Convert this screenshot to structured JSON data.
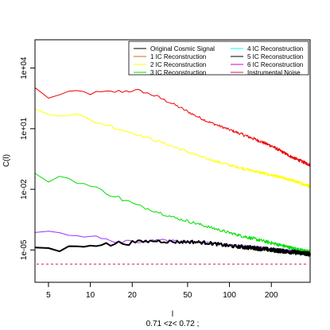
{
  "chart_data": {
    "type": "line",
    "title": "",
    "xlabel": "l",
    "subtitle": "0.71 <z< 0.72 ;",
    "ylabel": "C(l)",
    "x_scale": "log",
    "y_scale": "log",
    "xlim": [
      4,
      380
    ],
    "ylim_log10": [
      -6.6,
      5.4
    ],
    "x_ticks": [
      {
        "value": 5,
        "label": "5"
      },
      {
        "value": 10,
        "label": "10"
      },
      {
        "value": 20,
        "label": "20"
      },
      {
        "value": 50,
        "label": "50"
      },
      {
        "value": 100,
        "label": "100"
      },
      {
        "value": 200,
        "label": "200"
      }
    ],
    "y_ticks": [
      {
        "log10": -5,
        "label": "1e-05"
      },
      {
        "log10": -2,
        "label": "1e-02"
      },
      {
        "log10": 1,
        "label": "1e+01"
      },
      {
        "log10": 4,
        "label": "1e+04"
      }
    ],
    "legend": {
      "placement": "top-right",
      "columns": 2,
      "entries": [
        {
          "name": "Original Cosmic Signal",
          "color": "#000000"
        },
        {
          "name": "1 IC Reconstruction",
          "color": "#d2691e"
        },
        {
          "name": "2 IC Reconstruction",
          "color": "#ffff00"
        },
        {
          "name": "3 IC Reconstruction",
          "color": "#00dd00"
        },
        {
          "name": "4 IC Reconstruction",
          "color": "#00ffff"
        },
        {
          "name": "5 IC Reconstruction",
          "color": "#000000"
        },
        {
          "name": "6 IC Reconstruction",
          "color": "#cc00cc"
        },
        {
          "name": "Instrumental Noise",
          "color": "#d4145a"
        }
      ]
    },
    "series": [
      {
        "name": "1 IC Reconstruction",
        "color": "#ee0000",
        "width": 1,
        "noise": 0.07,
        "x": [
          4,
          5,
          6,
          8,
          10,
          13,
          17,
          22,
          30,
          40,
          55,
          70,
          100,
          150,
          200,
          280,
          380
        ],
        "log10_y": [
          3.0,
          2.55,
          2.65,
          2.85,
          2.75,
          2.8,
          2.85,
          2.9,
          2.6,
          2.2,
          1.7,
          1.35,
          0.95,
          0.5,
          0.15,
          -0.4,
          -0.8
        ]
      },
      {
        "name": "2 IC Reconstruction",
        "color": "#ffff00",
        "width": 1,
        "noise": 0.07,
        "x": [
          4,
          5,
          6,
          8,
          10,
          13,
          17,
          22,
          30,
          40,
          55,
          70,
          100,
          150,
          200,
          280,
          380
        ],
        "log10_y": [
          2.0,
          1.8,
          1.7,
          1.7,
          1.4,
          1.2,
          0.95,
          0.7,
          0.4,
          0.1,
          -0.25,
          -0.5,
          -0.8,
          -1.1,
          -1.3,
          -1.55,
          -1.85
        ]
      },
      {
        "name": "3 IC Reconstruction",
        "color": "#00dd00",
        "width": 1,
        "noise": 0.08,
        "x": [
          4,
          5,
          6,
          8,
          10,
          13,
          17,
          22,
          30,
          40,
          55,
          70,
          100,
          150,
          200,
          280,
          380
        ],
        "log10_y": [
          -1.3,
          -1.55,
          -1.35,
          -1.6,
          -1.85,
          -2.15,
          -2.5,
          -2.8,
          -3.1,
          -3.4,
          -3.65,
          -3.85,
          -4.15,
          -4.45,
          -4.65,
          -4.9,
          -5.1
        ]
      },
      {
        "name": "6 IC Reconstruction",
        "color": "#9b30ff",
        "width": 1,
        "noise": 0.06,
        "x": [
          4,
          5,
          6,
          8,
          10,
          13,
          17,
          22,
          30,
          40,
          55,
          70,
          100,
          150,
          200,
          280,
          380
        ],
        "log10_y": [
          -4.1,
          -4.15,
          -4.1,
          -4.3,
          -4.3,
          -4.5,
          -4.6,
          -4.6,
          -4.5,
          -4.55,
          -4.6,
          -4.65,
          -4.75,
          -4.85,
          -4.95,
          -5.05,
          -5.2
        ]
      },
      {
        "name": "Original Cosmic Signal",
        "color": "#000000",
        "width": 2,
        "noise": 0.09,
        "x": [
          4,
          5,
          6,
          8,
          10,
          13,
          17,
          22,
          30,
          40,
          55,
          70,
          100,
          150,
          200,
          280,
          380
        ],
        "log10_y": [
          -4.85,
          -4.95,
          -5.0,
          -4.8,
          -4.7,
          -4.75,
          -4.65,
          -4.6,
          -4.55,
          -4.6,
          -4.6,
          -4.65,
          -4.8,
          -4.9,
          -5.0,
          -5.1,
          -5.2
        ]
      }
    ],
    "noise_floor": {
      "name": "Instrumental Noise",
      "color": "#d4145a",
      "log10_y": -5.7
    }
  }
}
